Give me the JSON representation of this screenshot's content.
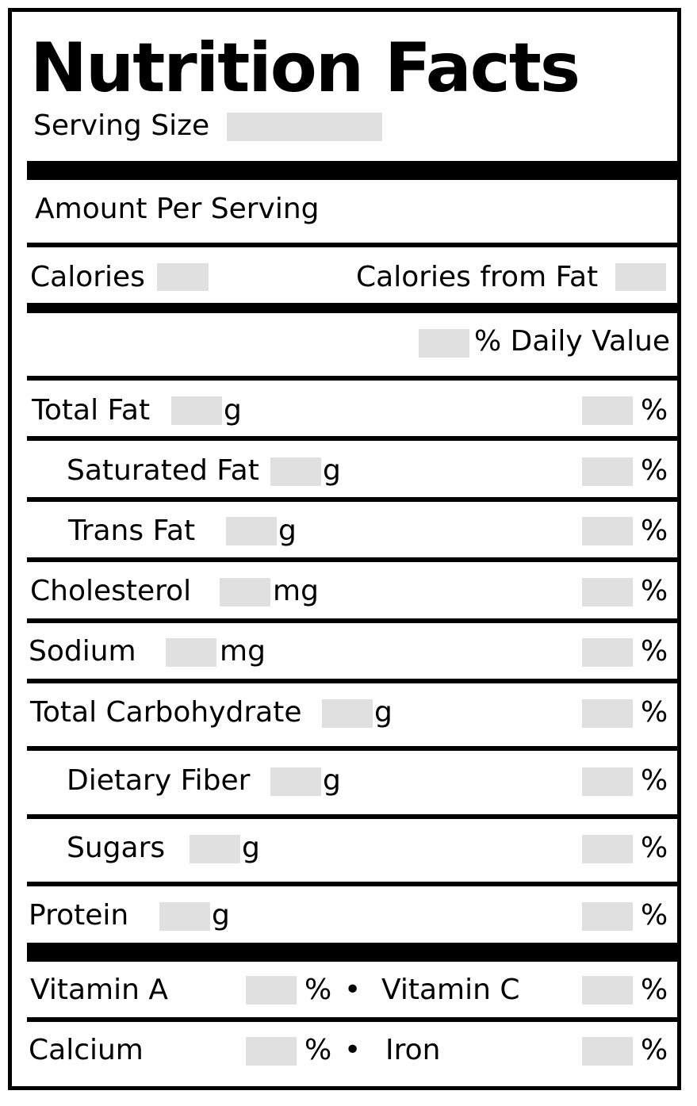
{
  "label": {
    "title": "Nutrition Facts",
    "serving_size": "Serving Size",
    "amount_per_serving": "Amount Per Serving",
    "calories": "Calories",
    "calories_from_fat": "Calories from Fat",
    "daily_value": "% Daily Value",
    "pct": "%",
    "g": "g",
    "mg": "mg",
    "bullet": "•"
  },
  "nutrients": {
    "total_fat": "Total Fat",
    "saturated_fat": "Saturated Fat",
    "trans_fat": "Trans Fat",
    "cholesterol": "Cholesterol",
    "sodium": "Sodium",
    "total_carbohydrate": "Total Carbohydrate",
    "dietary_fiber": "Dietary Fiber",
    "sugars": "Sugars",
    "protein": "Protein"
  },
  "vitamins": {
    "vitamin_a": "Vitamin A",
    "vitamin_c": "Vitamin C",
    "calcium": "Calcium",
    "iron": "Iron"
  },
  "colors": {
    "ink": "#000000",
    "blank_fill": "#e0e0e0",
    "background": "#ffffff"
  }
}
